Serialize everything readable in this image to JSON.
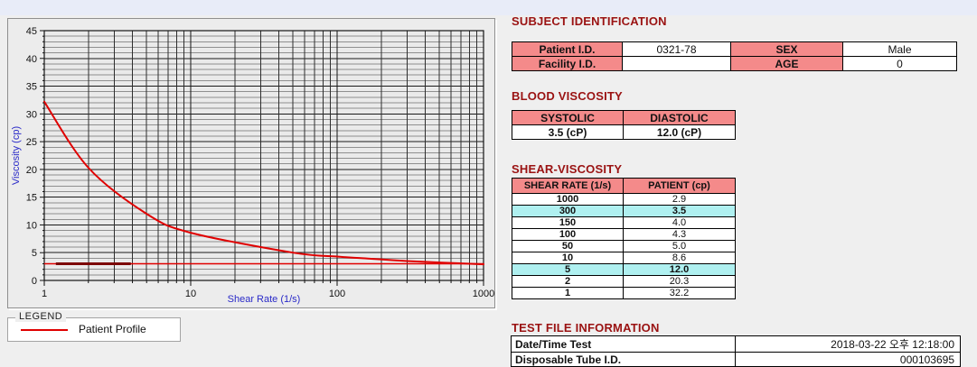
{
  "page": {
    "background": "#efefef",
    "top_band_color": "#e8ecf8"
  },
  "colors": {
    "section_title": "#9a1212",
    "table_header_fill": "#f48a8a",
    "row_highlight_fill": "#aff0f0",
    "axis_label": "#2a2ac8",
    "curve": "#e00000",
    "dark_segment": "#7c0404"
  },
  "chart_data": {
    "type": "line",
    "title": "",
    "xlabel": "Shear Rate (1/s)",
    "ylabel": "Viscosity (cp)",
    "x_scale": "log",
    "xlim": [
      1,
      1000
    ],
    "ylim": [
      0,
      45
    ],
    "x_ticks": [
      1,
      10,
      100,
      1000
    ],
    "y_major_ticks": [
      0,
      5,
      10,
      15,
      20,
      25,
      30,
      35,
      40,
      45
    ],
    "grid": "on",
    "legend_position": "bottom-left-groupbox",
    "series": [
      {
        "name": "Patient Profile",
        "color": "#e00000",
        "width": 2,
        "points": [
          [
            1,
            32.2
          ],
          [
            2,
            20.3
          ],
          [
            5,
            12.0
          ],
          [
            10,
            8.6
          ],
          [
            50,
            5.0
          ],
          [
            100,
            4.3
          ],
          [
            150,
            4.0
          ],
          [
            300,
            3.5
          ],
          [
            1000,
            2.9
          ]
        ]
      },
      {
        "name": "baseline",
        "color": "#e00000",
        "width": 1.6,
        "points": [
          [
            1,
            3.0
          ],
          [
            1000,
            3.0
          ]
        ]
      }
    ],
    "dark_segment": {
      "x1": 1.2,
      "x2": 3.9,
      "y": 3.0,
      "color": "#7c0404",
      "width": 3
    }
  },
  "legend": {
    "title": "LEGEND",
    "items": [
      {
        "label": "Patient Profile",
        "color": "#e00000"
      }
    ]
  },
  "subject": {
    "title": "SUBJECT IDENTIFICATION",
    "patient_id_label": "Patient I.D.",
    "patient_id_value": "0321-78",
    "sex_label": "SEX",
    "sex_value": "Male",
    "facility_id_label": "Facility I.D.",
    "facility_id_value": "",
    "age_label": "AGE",
    "age_value": "0"
  },
  "blood_viscosity": {
    "title": "BLOOD VISCOSITY",
    "systolic_header": "SYSTOLIC",
    "diastolic_header": "DIASTOLIC",
    "systolic_value": "3.5 (cP)",
    "diastolic_value": "12.0 (cP)"
  },
  "shear_viscosity": {
    "title": "SHEAR-VISCOSITY",
    "rate_header": "SHEAR RATE (1/s)",
    "patient_header": "PATIENT (cp)",
    "rows": [
      {
        "rate": "1000",
        "value": "2.9",
        "highlight": false
      },
      {
        "rate": "300",
        "value": "3.5",
        "highlight": true
      },
      {
        "rate": "150",
        "value": "4.0",
        "highlight": false
      },
      {
        "rate": "100",
        "value": "4.3",
        "highlight": false
      },
      {
        "rate": "50",
        "value": "5.0",
        "highlight": false
      },
      {
        "rate": "10",
        "value": "8.6",
        "highlight": false
      },
      {
        "rate": "5",
        "value": "12.0",
        "highlight": true
      },
      {
        "rate": "2",
        "value": "20.3",
        "highlight": false
      },
      {
        "rate": "1",
        "value": "32.2",
        "highlight": false
      }
    ]
  },
  "test_file": {
    "title": "TEST FILE INFORMATION",
    "date_label": "Date/Time Test",
    "date_value": "2018-03-22  오후 12:18:00",
    "tube_label": "Disposable Tube I.D.",
    "tube_value": "000103695"
  }
}
